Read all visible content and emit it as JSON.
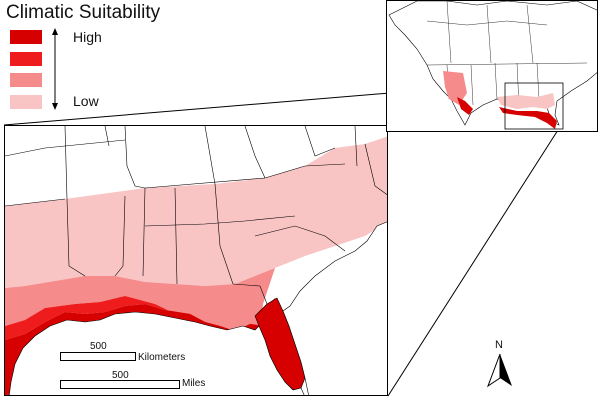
{
  "legend": {
    "title": "Climatic Suitability",
    "high_label": "High",
    "low_label": "Low",
    "classes": [
      {
        "level": "very-high",
        "color": "#d60000"
      },
      {
        "level": "high",
        "color": "#ee1c1c"
      },
      {
        "level": "medium",
        "color": "#f58b8b"
      },
      {
        "level": "low",
        "color": "#f9c4c4"
      }
    ]
  },
  "scale": {
    "km_value": "500",
    "km_unit": "Kilometers",
    "mi_value": "500",
    "mi_unit": "Miles"
  },
  "north_arrow": {
    "label": "N"
  },
  "colors": {
    "very_high": "#d60000",
    "high": "#ee1c1c",
    "medium": "#f58b8b",
    "low": "#f9c4c4",
    "border": "#000000",
    "land": "#ffffff"
  }
}
